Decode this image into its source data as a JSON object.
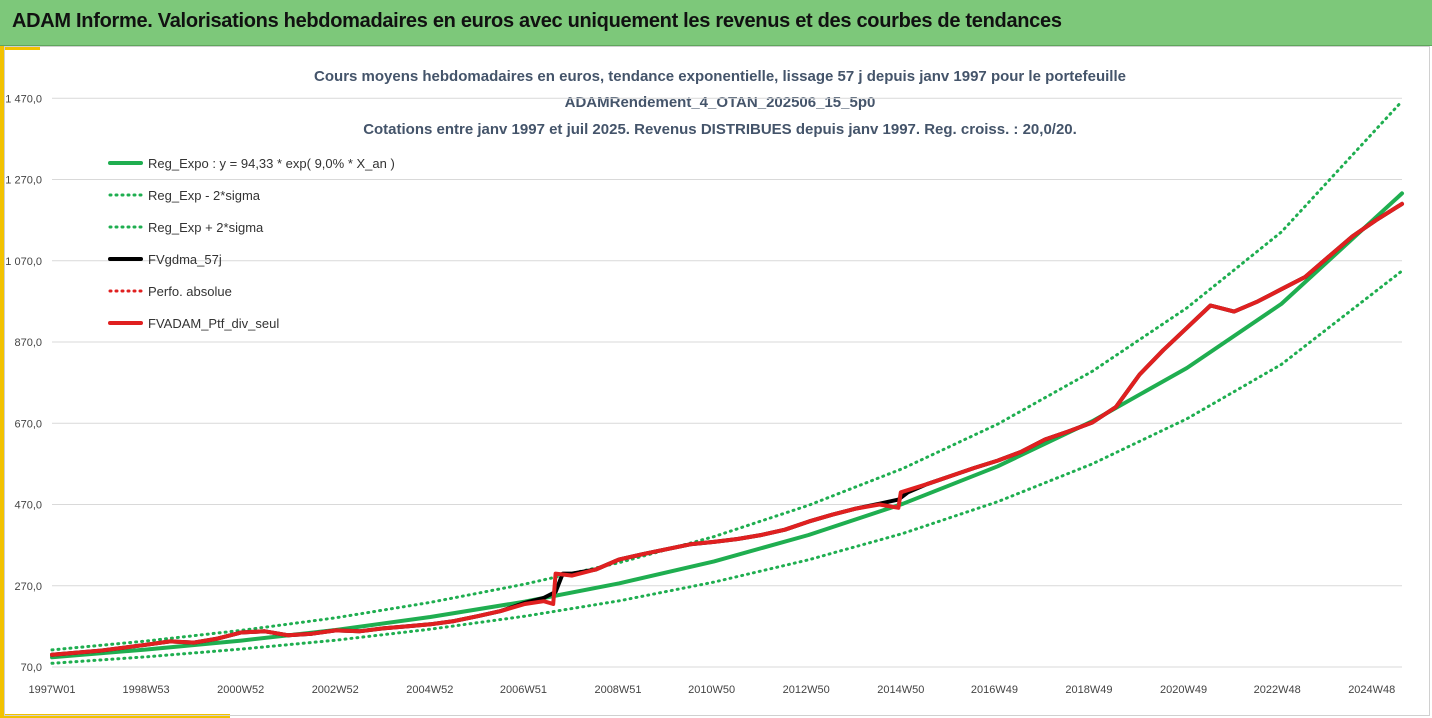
{
  "header": {
    "title": "ADAM Informe. Valorisations hebdomadaires en euros avec uniquement les revenus et des courbes de tendances"
  },
  "chart_data": {
    "type": "line",
    "title_lines": [
      "Cours moyens hebdomadaires en euros, tendance exponentielle, lissage 57 j depuis janv 1997 pour le portefeuille",
      "ADAMRendement_4_OTAN_202506_15_5p0",
      "Cotations entre janv 1997 et juil 2025. Revenus DISTRIBUES depuis janv 1997. Reg. croiss. : 20,0/20."
    ],
    "xlabel": "",
    "ylabel": "",
    "x_range": [
      1997.0,
      2025.55
    ],
    "ylim": [
      70,
      1520
    ],
    "y_ticks": [
      70,
      270,
      470,
      670,
      870,
      1070,
      1270,
      1470
    ],
    "y_tick_labels": [
      "70,0",
      "270,0",
      "470,0",
      "670,0",
      "870,0",
      "1 070,0",
      "1 270,0",
      "1 470,0"
    ],
    "x_ticks": [
      {
        "x": 1997.0,
        "label": "1997W01"
      },
      {
        "x": 1998.99,
        "label": "1998W53"
      },
      {
        "x": 2000.99,
        "label": "2000W52"
      },
      {
        "x": 2002.99,
        "label": "2002W52"
      },
      {
        "x": 2004.99,
        "label": "2004W52"
      },
      {
        "x": 2006.97,
        "label": "2006W51"
      },
      {
        "x": 2008.97,
        "label": "2008W51"
      },
      {
        "x": 2010.95,
        "label": "2010W50"
      },
      {
        "x": 2012.95,
        "label": "2012W50"
      },
      {
        "x": 2014.95,
        "label": "2014W50"
      },
      {
        "x": 2016.93,
        "label": "2016W49"
      },
      {
        "x": 2018.93,
        "label": "2018W49"
      },
      {
        "x": 2020.93,
        "label": "2020W49"
      },
      {
        "x": 2022.91,
        "label": "2022W48"
      },
      {
        "x": 2024.91,
        "label": "2024W48"
      }
    ],
    "grid": "horizontal",
    "legend_position": "top-left",
    "series": [
      {
        "name": "Reg_Expo : y = 94,33 * exp( 9,0% *  X_an )",
        "style": "solid",
        "color": "#1fae50",
        "x": [
          1997.0,
          1999.0,
          2001.0,
          2003.0,
          2005.0,
          2007.0,
          2009.0,
          2011.0,
          2013.0,
          2015.0,
          2017.0,
          2019.0,
          2021.0,
          2023.0,
          2025.55
        ],
        "y": [
          94,
          113,
          135,
          161,
          193,
          231,
          276,
          330,
          395,
          472,
          564,
          675,
          806,
          964,
          1236
        ]
      },
      {
        "name": "Reg_Exp - 2*sigma",
        "style": "dotted",
        "color": "#1fae50",
        "x": [
          1997.0,
          1999.0,
          2001.0,
          2003.0,
          2005.0,
          2007.0,
          2009.0,
          2011.0,
          2013.0,
          2015.0,
          2017.0,
          2019.0,
          2021.0,
          2023.0,
          2025.55
        ],
        "y": [
          79,
          95,
          114,
          136,
          163,
          195,
          233,
          279,
          334,
          399,
          477,
          570,
          681,
          815,
          1045
        ]
      },
      {
        "name": "Reg_Exp + 2*sigma",
        "style": "dotted",
        "color": "#1fae50",
        "x": [
          1997.0,
          1999.0,
          2001.0,
          2003.0,
          2005.0,
          2007.0,
          2009.0,
          2011.0,
          2013.0,
          2015.0,
          2017.0,
          2019.0,
          2021.0,
          2023.0,
          2025.55
        ],
        "y": [
          112,
          134,
          160,
          191,
          229,
          274,
          327,
          391,
          468,
          559,
          668,
          798,
          954,
          1141,
          1463
        ]
      },
      {
        "name": "FVgdma_57j",
        "style": "solid",
        "color": "#000000",
        "x": [
          1997.0,
          1998.0,
          1999.0,
          1999.5,
          2000.0,
          2000.5,
          2001.0,
          2001.5,
          2002.0,
          2002.5,
          2003.0,
          2003.5,
          2004.0,
          2004.5,
          2005.0,
          2005.5,
          2006.0,
          2006.5,
          2007.0,
          2007.4,
          2007.65,
          2007.8,
          2008.0,
          2008.5,
          2009.0,
          2009.5,
          2010.0,
          2010.5,
          2011.0,
          2011.5,
          2012.0,
          2012.5,
          2013.0,
          2013.5,
          2014.0,
          2014.5,
          2014.9,
          2015.1,
          2015.5,
          2016.0,
          2016.5,
          2017.0,
          2017.5,
          2018.0,
          2018.5,
          2019.0,
          2019.5,
          2020.0,
          2020.5,
          2021.0,
          2021.5,
          2022.0,
          2022.5,
          2023.0,
          2023.5,
          2024.0,
          2024.5,
          2025.0,
          2025.55
        ],
        "y": [
          100,
          110,
          125,
          133,
          130,
          140,
          155,
          158,
          148,
          152,
          160,
          158,
          165,
          170,
          175,
          183,
          195,
          208,
          228,
          240,
          255,
          300,
          300,
          310,
          335,
          348,
          360,
          372,
          378,
          385,
          395,
          408,
          428,
          445,
          460,
          472,
          482,
          500,
          520,
          540,
          560,
          578,
          600,
          630,
          650,
          672,
          710,
          790,
          850,
          905,
          960,
          945,
          970,
          1000,
          1030,
          1080,
          1130,
          1170,
          1210
        ]
      },
      {
        "name": "Perfo. absolue",
        "style": "dotted",
        "color": "#e02020",
        "x": [
          1997.0,
          1998.0,
          1999.0,
          1999.5,
          2000.0,
          2000.5,
          2001.0,
          2001.5,
          2002.0,
          2002.5,
          2003.0,
          2003.5,
          2004.0,
          2004.5,
          2005.0,
          2005.5,
          2006.0,
          2006.5,
          2007.0,
          2007.4,
          2007.6,
          2007.65,
          2008.0,
          2008.5,
          2009.0,
          2009.5,
          2010.0,
          2010.5,
          2011.0,
          2011.5,
          2012.0,
          2012.5,
          2013.0,
          2013.5,
          2014.0,
          2014.5,
          2014.9,
          2014.95,
          2015.5,
          2016.0,
          2016.5,
          2017.0,
          2017.5,
          2018.0,
          2018.5,
          2019.0,
          2019.5,
          2020.0,
          2020.5,
          2021.0,
          2021.5,
          2022.0,
          2022.5,
          2023.0,
          2023.5,
          2024.0,
          2024.5,
          2025.0,
          2025.55
        ],
        "y": [
          100,
          110,
          125,
          133,
          130,
          140,
          155,
          158,
          148,
          152,
          160,
          158,
          165,
          170,
          175,
          183,
          195,
          208,
          225,
          232,
          225,
          300,
          295,
          310,
          335,
          348,
          360,
          372,
          378,
          385,
          395,
          408,
          428,
          445,
          460,
          470,
          462,
          500,
          520,
          540,
          560,
          578,
          600,
          630,
          650,
          672,
          710,
          790,
          850,
          905,
          960,
          945,
          970,
          1000,
          1030,
          1080,
          1130,
          1170,
          1210
        ]
      },
      {
        "name": "FVADAM_Ptf_div_seul",
        "style": "solid",
        "color": "#e02020",
        "x": [
          1997.0,
          1998.0,
          1999.0,
          1999.5,
          2000.0,
          2000.5,
          2001.0,
          2001.5,
          2002.0,
          2002.5,
          2003.0,
          2003.5,
          2004.0,
          2004.5,
          2005.0,
          2005.5,
          2006.0,
          2006.5,
          2007.0,
          2007.4,
          2007.6,
          2007.65,
          2008.0,
          2008.5,
          2009.0,
          2009.5,
          2010.0,
          2010.5,
          2011.0,
          2011.5,
          2012.0,
          2012.5,
          2013.0,
          2013.5,
          2014.0,
          2014.5,
          2014.9,
          2014.95,
          2015.5,
          2016.0,
          2016.5,
          2017.0,
          2017.5,
          2018.0,
          2018.5,
          2019.0,
          2019.5,
          2020.0,
          2020.5,
          2021.0,
          2021.5,
          2022.0,
          2022.5,
          2023.0,
          2023.5,
          2024.0,
          2024.5,
          2025.0,
          2025.55
        ],
        "y": [
          100,
          110,
          125,
          133,
          130,
          140,
          155,
          158,
          148,
          152,
          160,
          158,
          165,
          170,
          175,
          183,
          195,
          208,
          225,
          232,
          225,
          300,
          295,
          310,
          335,
          348,
          360,
          372,
          378,
          385,
          395,
          408,
          428,
          445,
          460,
          470,
          462,
          500,
          520,
          540,
          560,
          578,
          600,
          630,
          650,
          672,
          710,
          790,
          850,
          905,
          960,
          945,
          970,
          1000,
          1030,
          1080,
          1130,
          1170,
          1210
        ]
      }
    ]
  }
}
